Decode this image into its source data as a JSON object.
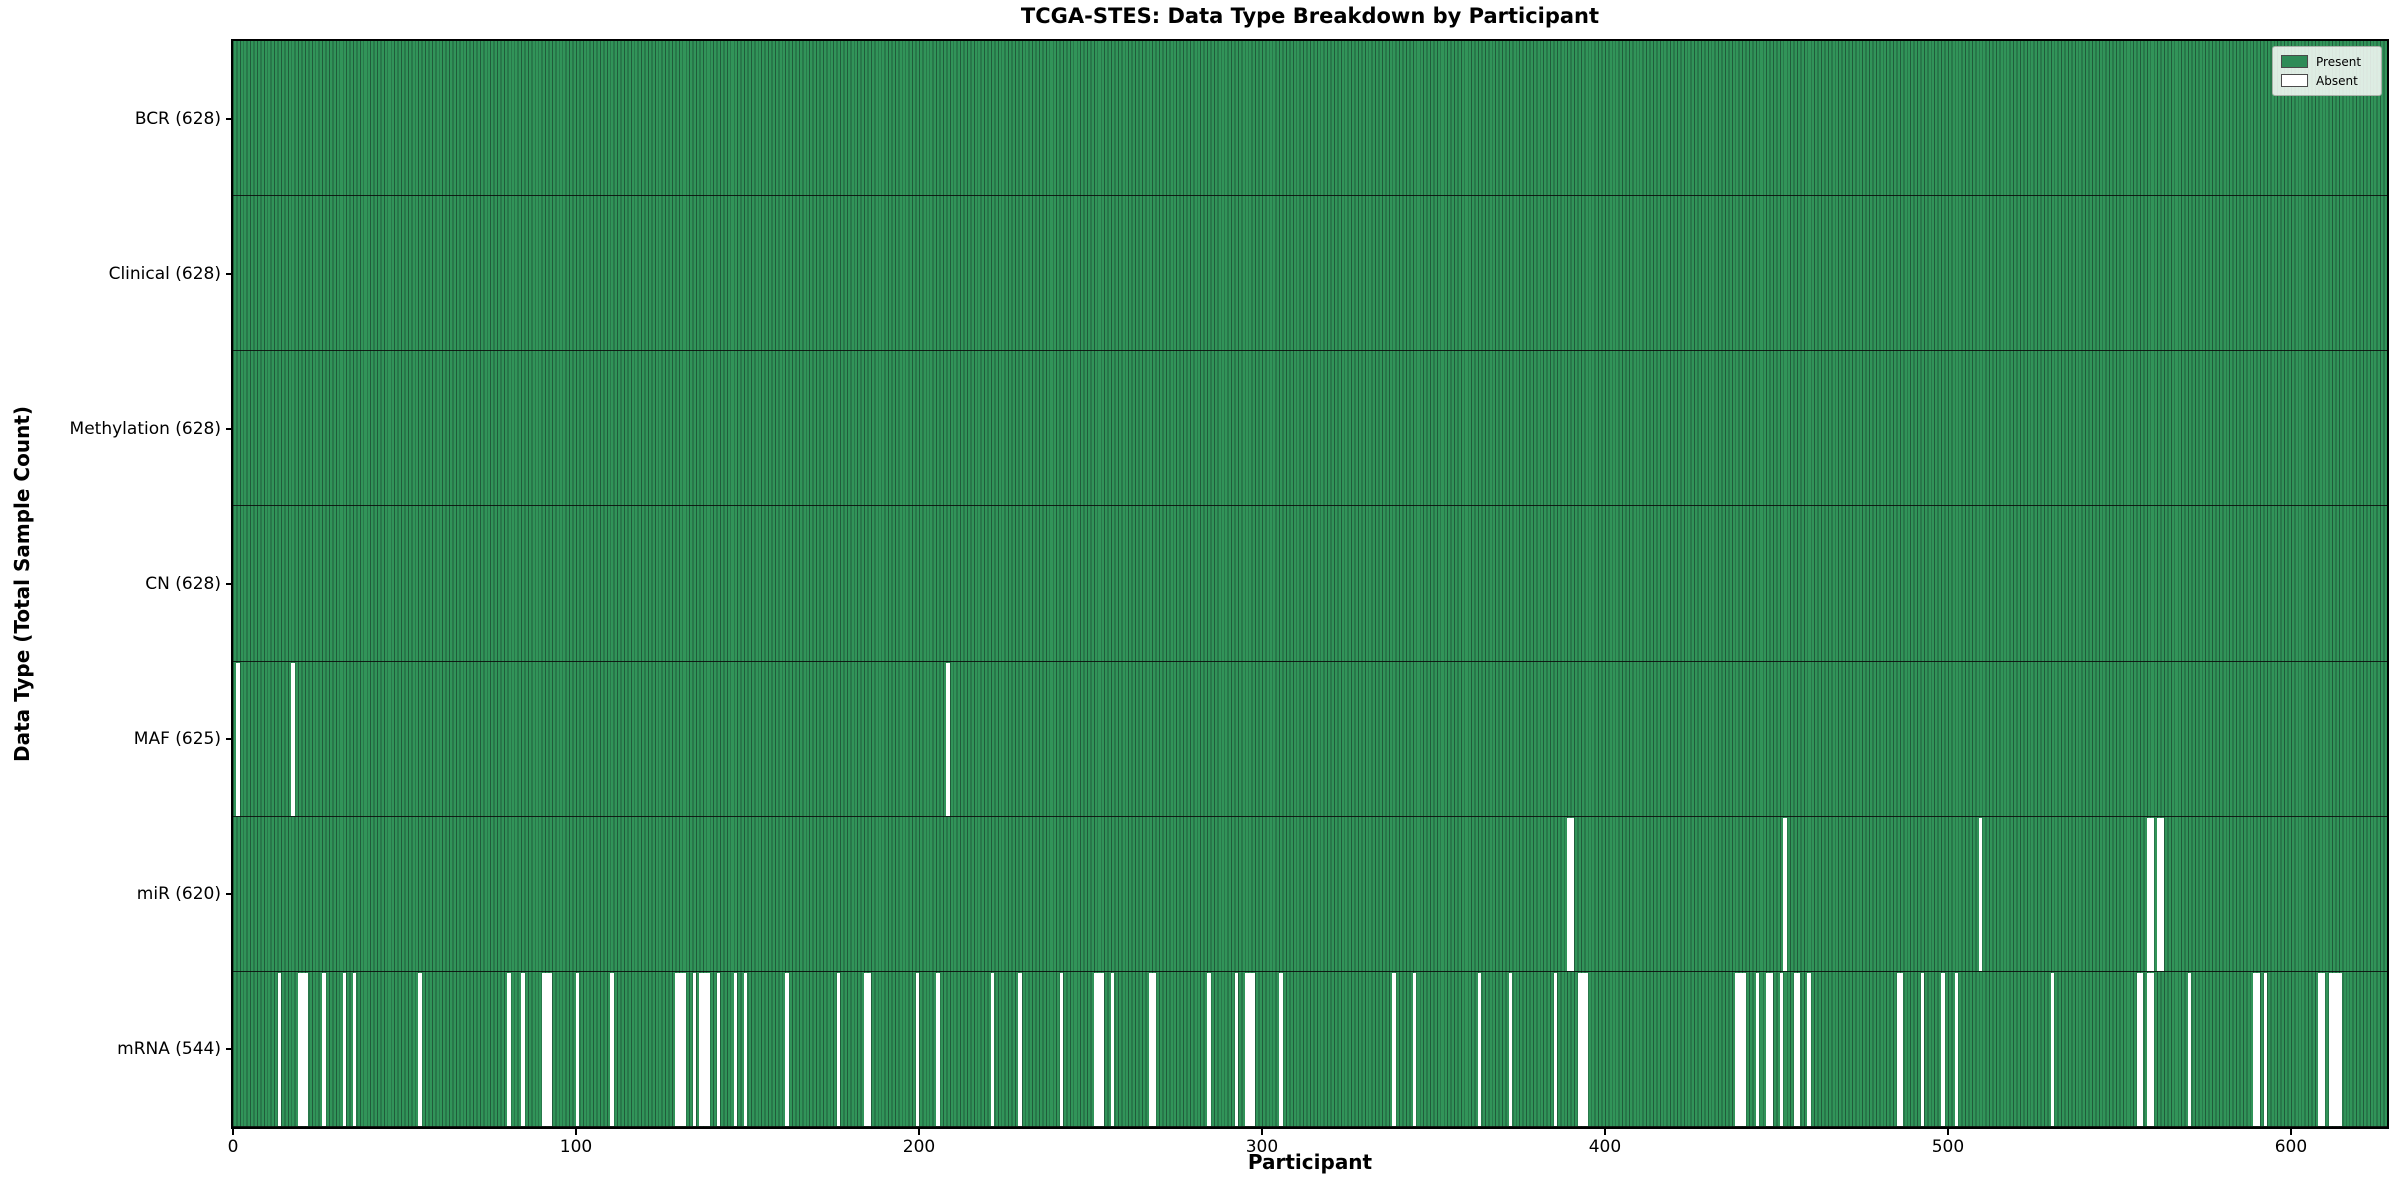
{
  "chart_data": {
    "type": "heatmap",
    "title": "TCGA-STES: Data Type Breakdown by Participant",
    "xlabel": "Participant",
    "ylabel": "Data Type (Total Sample Count)",
    "xlim": [
      0,
      628
    ],
    "x_ticks": [
      0,
      100,
      200,
      300,
      400,
      500,
      600
    ],
    "grid": false,
    "legend": {
      "position": "upper right",
      "present_label": "Present",
      "absent_label": "Absent"
    },
    "colors": {
      "present": "#2e8b57",
      "absent": "#ffffff",
      "cell_fill": "#319459",
      "cell_edge": "#205c3b",
      "frame": "#000000"
    },
    "n_participants": 628,
    "rows": [
      {
        "id": "bcr",
        "data_type": "BCR",
        "label": "BCR (628)",
        "present_count": 628,
        "absent": []
      },
      {
        "id": "clinical",
        "data_type": "Clinical",
        "label": "Clinical (628)",
        "present_count": 628,
        "absent": []
      },
      {
        "id": "methylation",
        "data_type": "Methylation",
        "label": "Methylation (628)",
        "present_count": 628,
        "absent": []
      },
      {
        "id": "cn",
        "data_type": "CN",
        "label": "CN (628)",
        "present_count": 628,
        "absent": []
      },
      {
        "id": "maf",
        "data_type": "MAF",
        "label": "MAF (625)",
        "present_count": 625,
        "absent": [
          1,
          17,
          208
        ]
      },
      {
        "id": "mir",
        "data_type": "miR",
        "label": "miR (620)",
        "present_count": 620,
        "absent": [
          389,
          390,
          452,
          509,
          558,
          559,
          561,
          562
        ]
      },
      {
        "id": "mrna",
        "data_type": "mRNA",
        "label": "mRNA (544)",
        "present_count": 544,
        "absent": [
          13,
          19,
          20,
          21,
          26,
          32,
          35,
          54,
          80,
          84,
          90,
          91,
          92,
          100,
          110,
          129,
          130,
          131,
          134,
          136,
          137,
          138,
          141,
          146,
          149,
          161,
          176,
          184,
          185,
          199,
          205,
          221,
          229,
          241,
          251,
          252,
          253,
          256,
          267,
          268,
          284,
          292,
          295,
          296,
          297,
          305,
          338,
          344,
          363,
          372,
          385,
          392,
          393,
          394,
          438,
          439,
          440,
          444,
          447,
          448,
          451,
          455,
          456,
          459,
          485,
          486,
          492,
          498,
          502,
          530,
          555,
          556,
          558,
          559,
          570,
          589,
          590,
          592,
          608,
          609,
          611,
          612,
          613,
          614
        ]
      }
    ]
  }
}
